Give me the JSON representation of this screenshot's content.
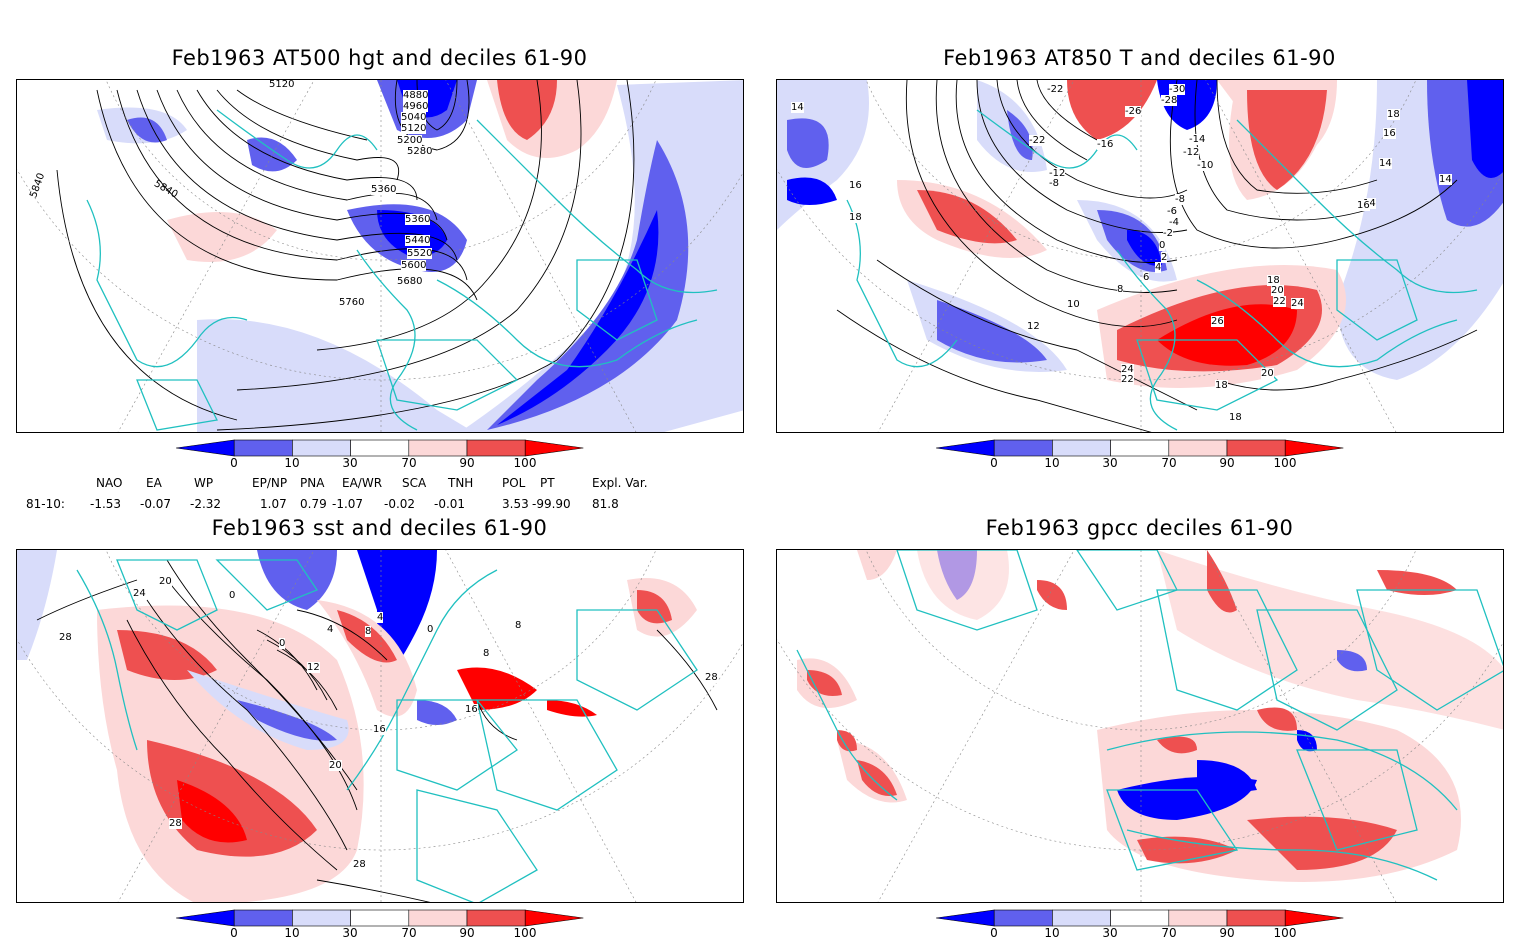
{
  "panels": [
    {
      "title": "Feb1963 AT500 hgt and deciles 61-90",
      "contour_labels": [
        "5120",
        "4880",
        "4960",
        "5040",
        "5120",
        "5200",
        "5280",
        "5360",
        "5360",
        "5440",
        "5520",
        "5600",
        "5680",
        "5760",
        "5840",
        "5840"
      ]
    },
    {
      "title": "Feb1963 AT850 T and deciles 61-90",
      "contour_labels": [
        "-22",
        "-30",
        "-28",
        "-26",
        "-22",
        "-12",
        "-8",
        "-16",
        "-14",
        "-12",
        "-10",
        "-8",
        "-6",
        "-4",
        "-2",
        "0",
        "2",
        "4",
        "6",
        "8",
        "10",
        "12",
        "14",
        "14",
        "14",
        "14",
        "16",
        "16",
        "18",
        "18",
        "16",
        "18",
        "20",
        "22",
        "24",
        "26",
        "24",
        "22",
        "20",
        "18",
        "18"
      ]
    },
    {
      "title": "Feb1963 sst and deciles 61-90",
      "contour_labels": [
        "24",
        "20",
        "0",
        "28",
        "0",
        "4",
        "8",
        "4",
        "0",
        "12",
        "16",
        "20",
        "28",
        "16",
        "8",
        "8",
        "28",
        "28"
      ]
    },
    {
      "title": "Feb1963 gpcc deciles 61-90",
      "contour_labels": []
    }
  ],
  "colorbar": {
    "labels": [
      "0",
      "10",
      "30",
      "70",
      "90",
      "100"
    ],
    "colors": [
      "#0000ff",
      "#6060ee",
      "#d8dcfa",
      "#ffffff",
      "#fcd8d8",
      "#ee5050",
      "#ff0000"
    ]
  },
  "indices": {
    "headers": [
      "NAO",
      "EA",
      "WP",
      "EP/NP",
      "PNA",
      "EA/WR",
      "SCA",
      "TNH",
      "POL",
      "PT",
      "Expl. Var."
    ],
    "row_label": "81-10:",
    "values": [
      "-1.53",
      "-0.07",
      "-2.32",
      "1.07",
      "0.79",
      "-1.07",
      "-0.02",
      "-0.01",
      "3.53",
      "-99.90",
      "81.8"
    ]
  },
  "colors": {
    "coast": "#20c0c0",
    "contour": "#000000"
  }
}
